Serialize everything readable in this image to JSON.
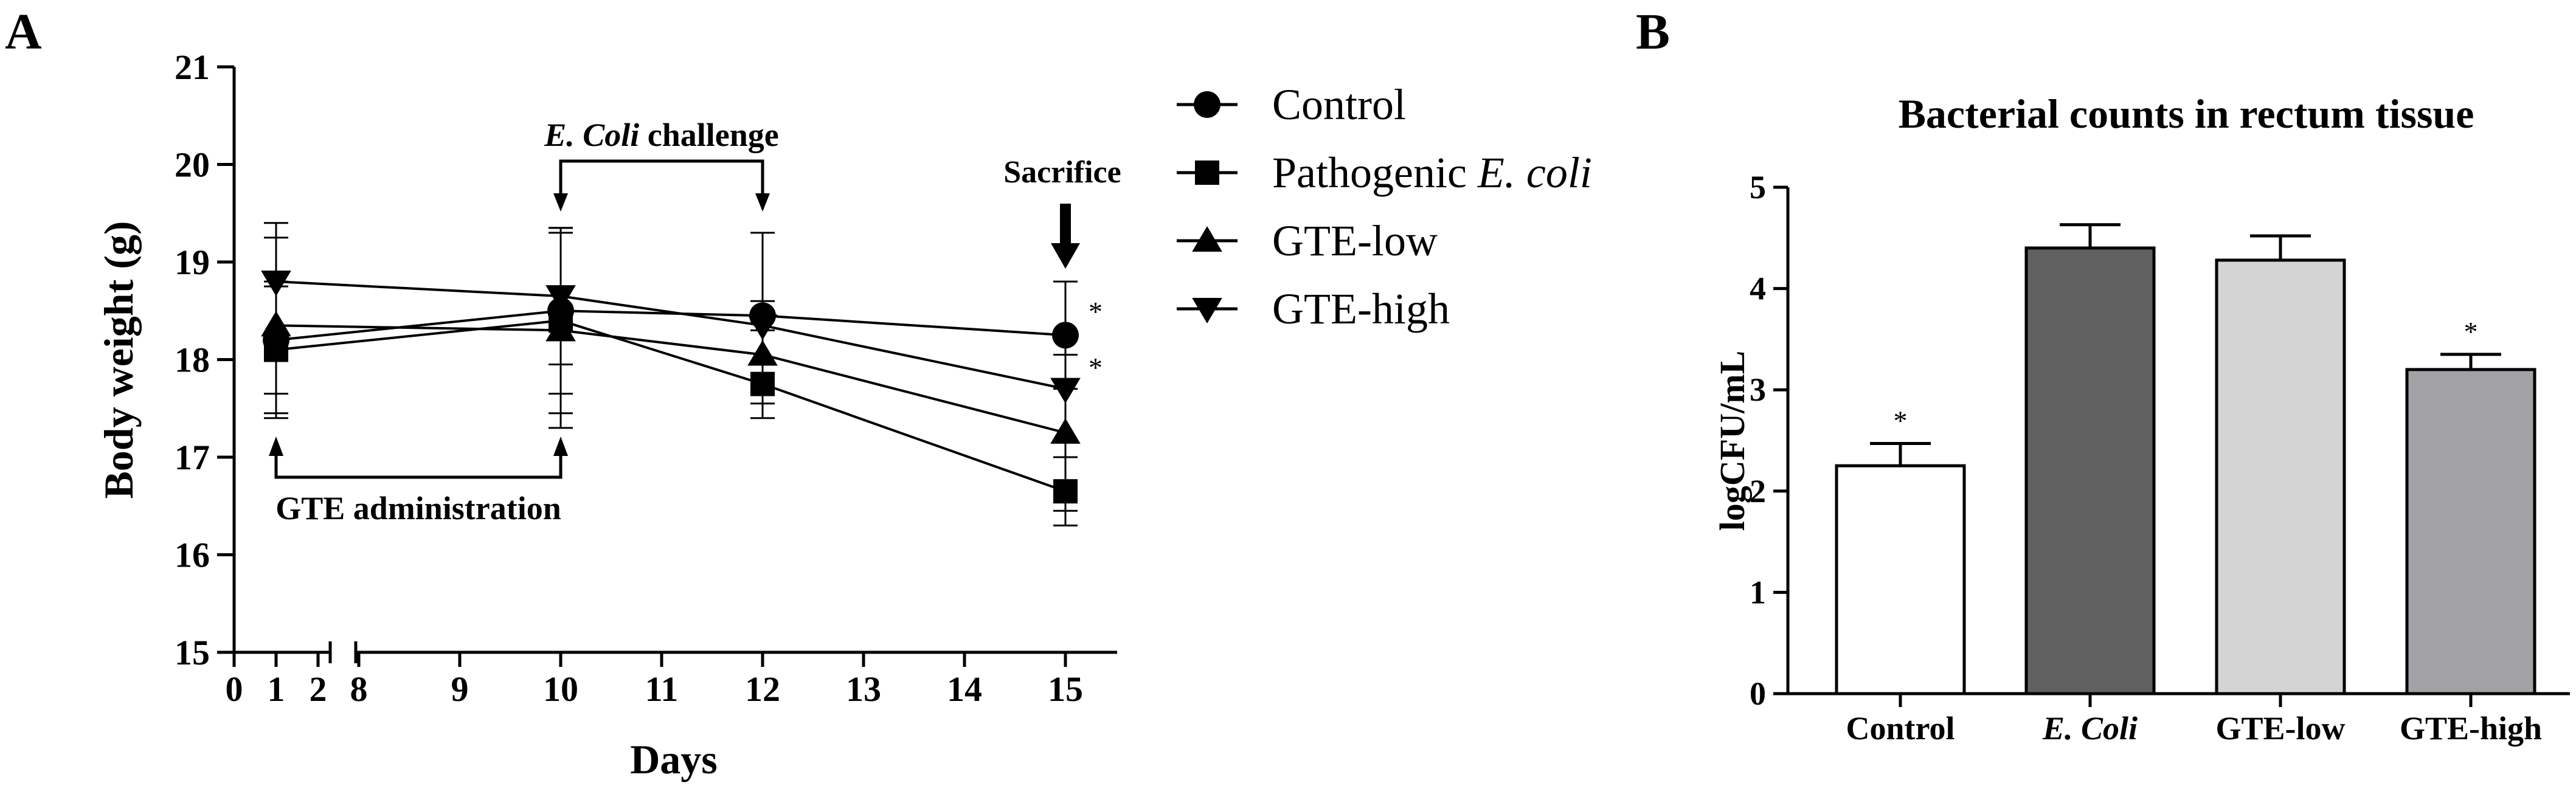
{
  "colors": {
    "line": "#000000",
    "control_bar": "#ffffff",
    "ecoli_bar": "#606060",
    "gte_low_bar": "#d4d4d4",
    "gte_high_bar": "#a2a1a6"
  },
  "chart_data": [
    {
      "panel": "A",
      "type": "line",
      "title": "",
      "xlabel": "Days",
      "ylabel": "Body weight (g)",
      "ylim": [
        15,
        21
      ],
      "yticks": [
        15,
        16,
        17,
        18,
        19,
        20,
        21
      ],
      "xticks": [
        "0",
        "1",
        "2",
        "8",
        "9",
        "10",
        "11",
        "12",
        "13",
        "14",
        "15"
      ],
      "x_axis_break": "between 2 and 8",
      "x": [
        1,
        10,
        12,
        15
      ],
      "series": [
        {
          "name": "Control",
          "marker": "circle",
          "values": [
            18.2,
            18.5,
            18.45,
            18.25
          ],
          "error": [
            0.55,
            0.85,
            0.15,
            0.55
          ]
        },
        {
          "name": "Pathogenic E. coli",
          "marker": "square",
          "values": [
            18.1,
            18.4,
            17.75,
            16.65
          ],
          "error": [
            0.7,
            0.95,
            0.2,
            0.35
          ]
        },
        {
          "name": "GTE-low",
          "marker": "triangle-up",
          "values": [
            18.35,
            18.3,
            18.05,
            17.25
          ],
          "error": [
            0.9,
            1.0,
            0.4,
            0.8
          ]
        },
        {
          "name": "GTE-high",
          "marker": "triangle-down",
          "values": [
            18.8,
            18.65,
            18.35,
            17.7
          ],
          "error": [
            0.6,
            0.7,
            0.95,
            0.55
          ]
        }
      ],
      "legend": {
        "position": "right",
        "entries": [
          {
            "text": "Control",
            "marker": "circle"
          },
          {
            "prefix": "Pathogenic ",
            "italic": "E. coli",
            "marker": "square"
          },
          {
            "text": "GTE-low",
            "marker": "triangle-up"
          },
          {
            "text": "GTE-high",
            "marker": "triangle-down"
          }
        ]
      },
      "annotations": {
        "challenge_italic": "E. Coli",
        "challenge_rest": " challenge",
        "sacrifice": "Sacrifice",
        "gte_admin": "GTE administration",
        "star": "*"
      }
    },
    {
      "panel": "B",
      "type": "bar",
      "title": "Bacterial counts in rectum tissue",
      "xlabel": "",
      "ylabel": "logCFU/mL",
      "ylim": [
        0,
        5
      ],
      "yticks": [
        0,
        1,
        2,
        3,
        4,
        5
      ],
      "categories": [
        "Control",
        "E. Coli",
        "GTE-low",
        "GTE-high"
      ],
      "italic_categories": [
        "E. Coli"
      ],
      "values": [
        2.25,
        4.4,
        4.28,
        3.2
      ],
      "error": [
        0.22,
        0.23,
        0.24,
        0.15
      ],
      "significant": [
        true,
        false,
        false,
        true
      ]
    }
  ]
}
